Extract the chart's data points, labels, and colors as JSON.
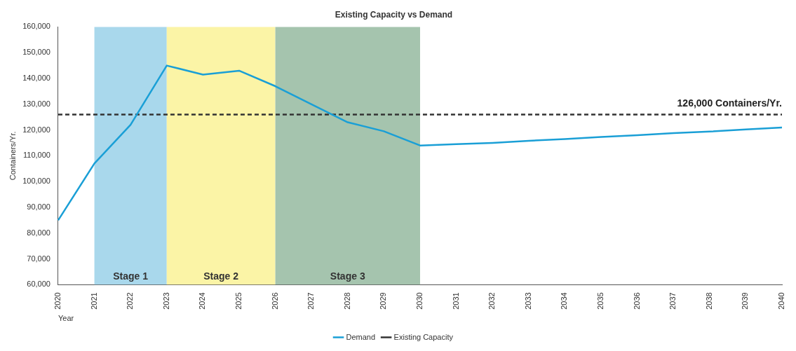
{
  "chart_data": {
    "type": "line",
    "title": "Existing Capacity vs Demand",
    "xlabel": "Year",
    "ylabel": "Containers/Yr.",
    "categories": [
      "2020",
      "2021",
      "2022",
      "2023",
      "2024",
      "2025",
      "2026",
      "2027",
      "2028",
      "2029",
      "2030",
      "2031",
      "2032",
      "2033",
      "2034",
      "2035",
      "2036",
      "2037",
      "2038",
      "2039",
      "2040"
    ],
    "series": [
      {
        "name": "Demand",
        "color": "#1a9fd6",
        "line_style": "solid",
        "values": [
          85000,
          107000,
          122000,
          145000,
          141500,
          143000,
          137000,
          130000,
          123000,
          119500,
          114000,
          114500,
          115000,
          115800,
          116500,
          117300,
          118000,
          118800,
          119400,
          120200,
          121000
        ]
      },
      {
        "name": "Existing Capacity",
        "color": "#333333",
        "line_style": "dashed",
        "values": [
          126000,
          126000,
          126000,
          126000,
          126000,
          126000,
          126000,
          126000,
          126000,
          126000,
          126000,
          126000,
          126000,
          126000,
          126000,
          126000,
          126000,
          126000,
          126000,
          126000,
          126000
        ]
      }
    ],
    "bands": [
      {
        "axis": "x",
        "from": "2021",
        "to": "2023",
        "label": "Stage 1",
        "color": "#a9d8ec"
      },
      {
        "axis": "x",
        "from": "2023",
        "to": "2026",
        "label": "Stage 2",
        "color": "#fbf4a6"
      },
      {
        "axis": "x",
        "from": "2026",
        "to": "2030",
        "label": "Stage 3",
        "color": "#a5c4ae"
      }
    ],
    "annotations": [
      {
        "text": "126,000 Containers/Yr.",
        "x": "2040",
        "y": 126000
      }
    ],
    "ylim": [
      60000,
      160000
    ],
    "yticks": [
      {
        "value": 60000,
        "label": "60,000"
      },
      {
        "value": 70000,
        "label": "70,000"
      },
      {
        "value": 80000,
        "label": "80,000"
      },
      {
        "value": 90000,
        "label": "90,000"
      },
      {
        "value": 100000,
        "label": "100,000"
      },
      {
        "value": 110000,
        "label": "110,000"
      },
      {
        "value": 120000,
        "label": "120,000"
      },
      {
        "value": 130000,
        "label": "130,000"
      },
      {
        "value": 140000,
        "label": "140,000"
      },
      {
        "value": 150000,
        "label": "150,000"
      },
      {
        "value": 160000,
        "label": "160,000"
      }
    ],
    "grid": false,
    "legend": "bottom",
    "marker": "none"
  }
}
